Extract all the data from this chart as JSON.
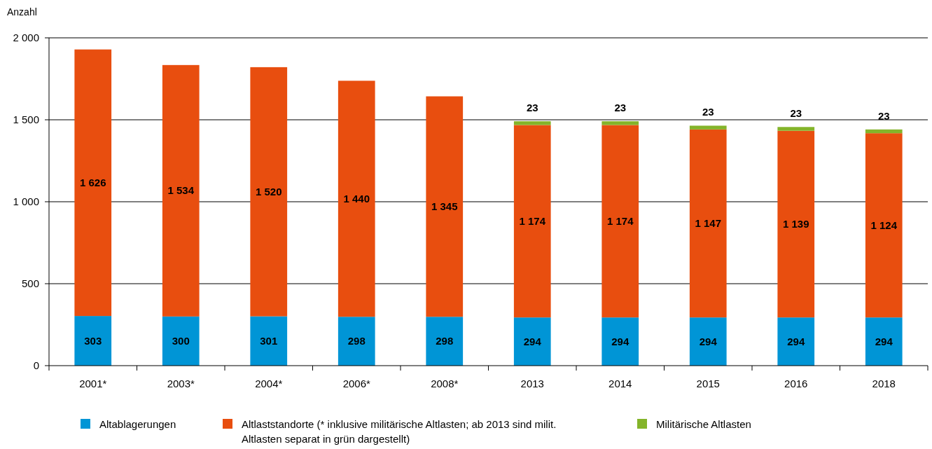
{
  "chart_data": {
    "type": "bar",
    "stacked": true,
    "ylabel": "Anzahl",
    "categories": [
      "2001*",
      "2003*",
      "2004*",
      "2006*",
      "2008*",
      "2013",
      "2014",
      "2015",
      "2016",
      "2018"
    ],
    "series": [
      {
        "name": "Altablagerungen",
        "color": "#0095d6",
        "values": [
          303,
          300,
          301,
          298,
          298,
          294,
          294,
          294,
          294,
          294
        ],
        "value_labels": [
          "303",
          "300",
          "301",
          "298",
          "298",
          "294",
          "294",
          "294",
          "294",
          "294"
        ]
      },
      {
        "name": "Altlaststandorte (* inklusive militärische Altlasten; ab 2013 sind milit. Altlasten separat in grün dargestellt)",
        "color": "#e84e0f",
        "values": [
          1626,
          1534,
          1520,
          1440,
          1345,
          1174,
          1174,
          1147,
          1139,
          1124
        ],
        "value_labels": [
          "1 626",
          "1 534",
          "1 520",
          "1 440",
          "1 345",
          "1 174",
          "1 174",
          "1 147",
          "1 139",
          "1 124"
        ]
      },
      {
        "name": "Militärische Altlasten",
        "color": "#84b42a",
        "values": [
          null,
          null,
          null,
          null,
          null,
          23,
          23,
          23,
          23,
          23
        ],
        "value_labels": [
          null,
          null,
          null,
          null,
          null,
          "23",
          "23",
          "23",
          "23",
          "23"
        ]
      }
    ],
    "ylim": [
      0,
      2000
    ],
    "yticks": [
      0,
      500,
      {
        "value": 1000,
        "label": "1 000"
      },
      {
        "value": 1500,
        "label": "1 500"
      },
      {
        "value": 2000,
        "label": "2 000"
      }
    ],
    "grid": "y",
    "legend": "bottom"
  }
}
